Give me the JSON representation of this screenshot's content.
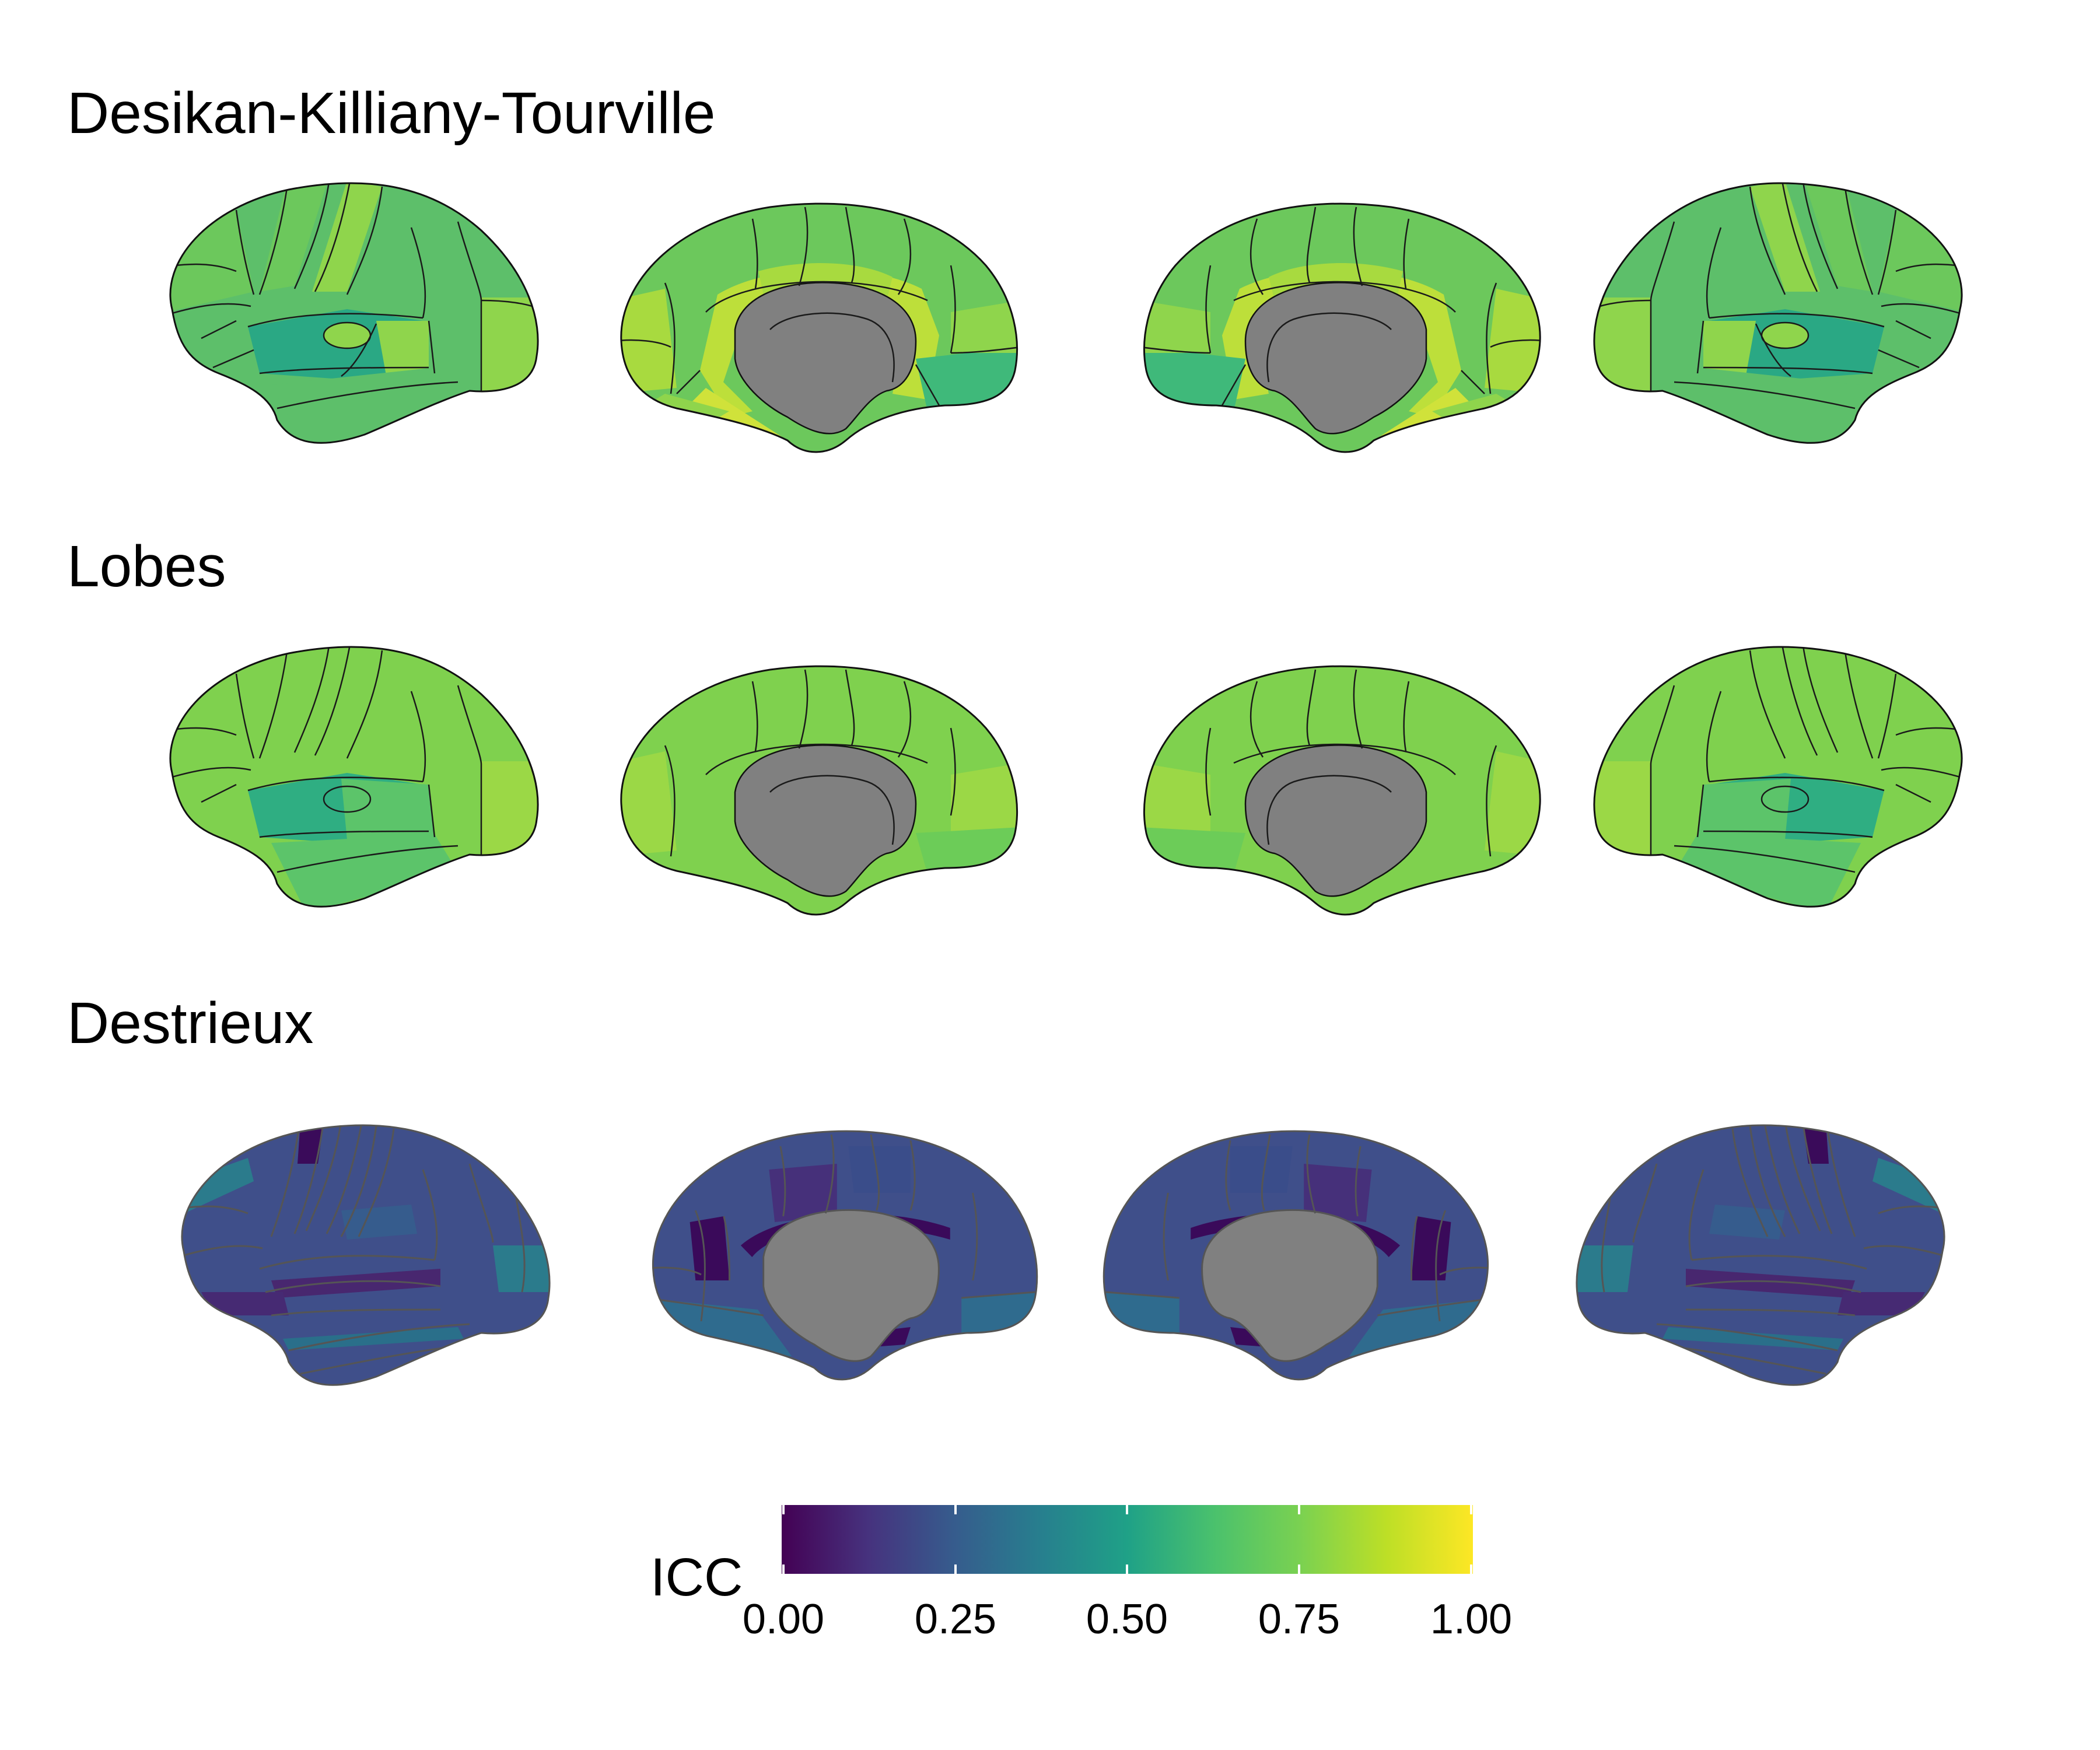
{
  "panels": [
    {
      "title": "Desikan-Killiany-Tourville"
    },
    {
      "title": "Lobes"
    },
    {
      "title": "Destrieux"
    }
  ],
  "legend": {
    "title": "ICC",
    "ticks": [
      "0.00",
      "0.25",
      "0.50",
      "0.75",
      "1.00"
    ],
    "range": [
      0,
      1
    ],
    "colormap": "viridis"
  },
  "colors": {
    "medial_wall": "#808080",
    "viridis_stops": [
      "#440154",
      "#3b528b",
      "#21918c",
      "#5ec962",
      "#fde725"
    ]
  }
}
